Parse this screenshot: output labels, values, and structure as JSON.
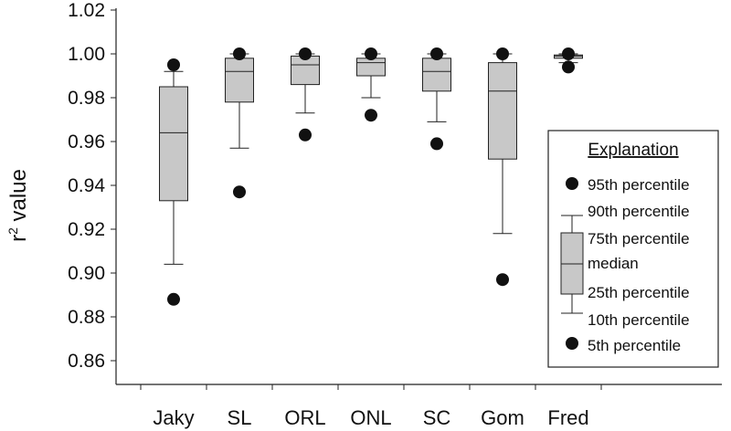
{
  "chart_data": {
    "type": "box",
    "ylabel_main": "r",
    "ylabel_sup": "2",
    "ylabel_rest": " value",
    "ylim": [
      0.855,
      1.02
    ],
    "yticks": [
      0.86,
      0.88,
      0.9,
      0.92,
      0.94,
      0.96,
      0.98,
      1.0,
      1.02
    ],
    "ytick_labels": [
      "0.86",
      "0.88",
      "0.90",
      "0.92",
      "0.94",
      "0.96",
      "0.98",
      "1.00",
      "1.02"
    ],
    "categories": [
      "Jaky",
      "SL",
      "ORL",
      "ONL",
      "SC",
      "Gom",
      "Fred"
    ],
    "boxes": [
      {
        "p5": 0.888,
        "p10": 0.904,
        "p25": 0.933,
        "median": 0.964,
        "p75": 0.985,
        "p90": 0.992,
        "p95": 0.995
      },
      {
        "p5": 0.937,
        "p10": 0.957,
        "p25": 0.978,
        "median": 0.992,
        "p75": 0.998,
        "p90": 1.0,
        "p95": 1.0
      },
      {
        "p5": 0.963,
        "p10": 0.973,
        "p25": 0.986,
        "median": 0.995,
        "p75": 0.999,
        "p90": 1.0,
        "p95": 1.0
      },
      {
        "p5": 0.972,
        "p10": 0.98,
        "p25": 0.99,
        "median": 0.996,
        "p75": 0.998,
        "p90": 1.0,
        "p95": 1.0
      },
      {
        "p5": 0.959,
        "p10": 0.969,
        "p25": 0.983,
        "median": 0.992,
        "p75": 0.998,
        "p90": 1.0,
        "p95": 1.0
      },
      {
        "p5": 0.897,
        "p10": 0.918,
        "p25": 0.952,
        "median": 0.983,
        "p75": 0.996,
        "p90": 1.0,
        "p95": 1.0
      },
      {
        "p5": 0.994,
        "p10": 0.996,
        "p25": 0.998,
        "median": 0.999,
        "p75": 0.9995,
        "p90": 1.0,
        "p95": 1.0
      }
    ],
    "legend": {
      "title": "Explanation",
      "p95": "95th percentile",
      "p90": "90th percentile",
      "p75": "75th percentile",
      "median": "median",
      "p25": "25th percentile",
      "p10": "10th percentile",
      "p5": "5th percentile"
    },
    "colors": {
      "box_fill": "#c8c8c8",
      "marker": "#111111",
      "line": "#222222"
    }
  }
}
